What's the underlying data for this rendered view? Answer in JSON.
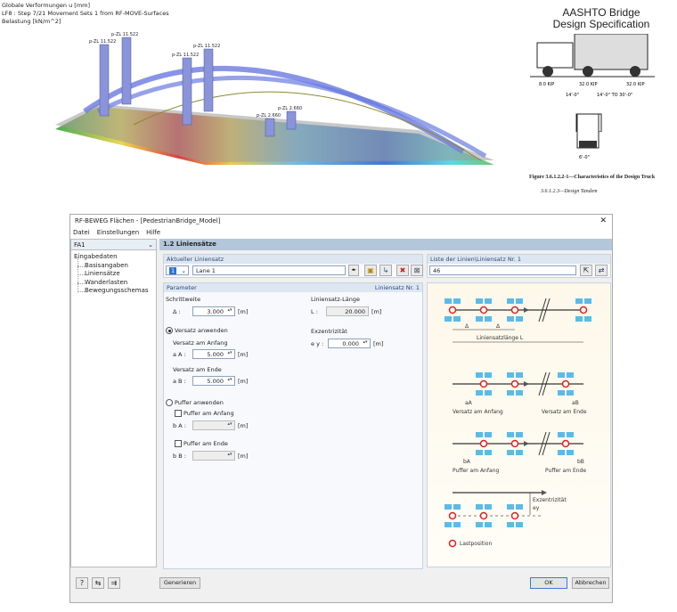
{
  "viewport": {
    "info": [
      "Globale Verformungen u [mm]",
      "LF8 : Step 7/21 Movement Sets 1 from RF-MOVE-Surfaces",
      "Belastung [kN/m^2]"
    ],
    "load_labels": [
      "p-ZL 11.522",
      "p-ZL 11.522",
      "p-ZL 11.522",
      "p-ZL 11.522",
      "p-ZL 2.660",
      "p-ZL 2.660"
    ]
  },
  "aashto": {
    "title1": "AASHTO Bridge",
    "title2": "Design Specification",
    "loads": [
      "8.0 KIP",
      "32.0 KIP",
      "32.0 KIP"
    ],
    "dims": [
      "14'-0\"",
      "14'-0\" TO 30'-0\""
    ],
    "width": "6'-0\"",
    "figure": "Figure 3.6.1.2.2-1—Characteristics of the Design Truck",
    "section": "3.6.1.2.3—Design Tandem"
  },
  "dialog": {
    "title": "RF-BEWEG Flächen - [PedestrianBridge_Model]",
    "menu": [
      "Datei",
      "Einstellungen",
      "Hilfe"
    ],
    "case": "FA1",
    "tree": {
      "root": "Eingabedaten",
      "items": [
        "Basisangaben",
        "Liniensätze",
        "Wanderlasten",
        "Bewegungsschemas"
      ]
    },
    "header": "1.2 Liniensätze",
    "current": {
      "label": "Aktueller Liniensatz",
      "number": "1",
      "name": "Lane 1"
    },
    "params": {
      "label": "Parameter",
      "right": "Liniensatz Nr. 1",
      "step_label": "Schrittweite",
      "step_sym": "Δ :",
      "step": "3.000",
      "len_label": "Liniensatz-Länge",
      "len_sym": "L :",
      "len": "20.000",
      "ecc_label": "Exzentrizität",
      "ecc_sym": "e y :",
      "ecc": "0.000",
      "offset_radio": "Versatz anwenden",
      "offset_start": "Versatz am Anfang",
      "aA": "a A :",
      "aA_val": "5.000",
      "offset_end": "Versatz am Ende",
      "aB": "a B :",
      "aB_val": "5.000",
      "buffer_radio": "Puffer anwenden",
      "buffer_start": "Puffer am Anfang",
      "bA": "b A :",
      "buffer_end": "Puffer am Ende",
      "bB": "b B :",
      "unit": "[m]"
    },
    "list": {
      "label": "Liste der Linien\\Liniensatz Nr. 1",
      "value": "46"
    },
    "diagram": {
      "delta": "Δ",
      "length": "Liniensatzlänge L",
      "aA": "aA",
      "aB": "aB",
      "offset_start": "Versatz am Anfang",
      "offset_end": "Versatz am Ende",
      "bA": "bA",
      "bB": "bB",
      "buffer_start": "Puffer am Anfang",
      "buffer_end": "Puffer am Ende",
      "ecc": "Exzentrizität",
      "ey": "ey",
      "legend": "Lastposition"
    },
    "buttons": {
      "generate": "Generieren",
      "ok": "OK",
      "cancel": "Abbrechen"
    }
  }
}
